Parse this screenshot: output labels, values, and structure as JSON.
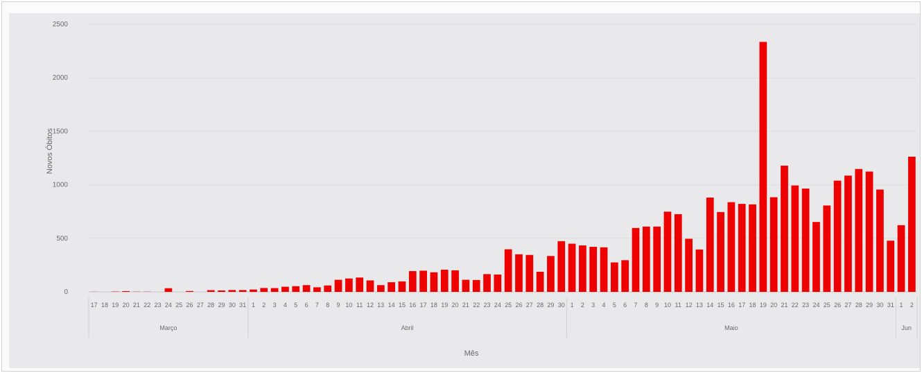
{
  "chart_data": {
    "type": "bar",
    "title": "",
    "xlabel": "Mês",
    "ylabel": "Novos Óbitos",
    "ylim": [
      0,
      2500
    ],
    "yticks": [
      0,
      500,
      1000,
      1500,
      2000,
      2500
    ],
    "grid": true,
    "bar_color": "#ee0000",
    "months": [
      {
        "label": "Março",
        "start": 0,
        "count": 15
      },
      {
        "label": "Abril",
        "start": 15,
        "count": 30
      },
      {
        "label": "Maio",
        "start": 45,
        "count": 31
      },
      {
        "label": "Jun",
        "start": 76,
        "count": 2
      }
    ],
    "categories": [
      "17",
      "18",
      "19",
      "20",
      "21",
      "22",
      "23",
      "24",
      "25",
      "26",
      "27",
      "28",
      "29",
      "30",
      "31",
      "1",
      "2",
      "3",
      "4",
      "5",
      "6",
      "7",
      "8",
      "9",
      "10",
      "11",
      "12",
      "13",
      "14",
      "15",
      "16",
      "17",
      "18",
      "19",
      "20",
      "21",
      "22",
      "23",
      "24",
      "25",
      "26",
      "27",
      "28",
      "29",
      "30",
      "1",
      "2",
      "3",
      "4",
      "5",
      "6",
      "7",
      "8",
      "9",
      "10",
      "11",
      "12",
      "13",
      "14",
      "15",
      "16",
      "17",
      "18",
      "19",
      "20",
      "21",
      "22",
      "23",
      "24",
      "25",
      "26",
      "27",
      "28",
      "29",
      "30",
      "31",
      "1",
      "2"
    ],
    "values": [
      1,
      0,
      3,
      7,
      2,
      2,
      0,
      34,
      0,
      8,
      0,
      16,
      13,
      17,
      17,
      22,
      36,
      35,
      48,
      53,
      63,
      43,
      60,
      113,
      125,
      134,
      107,
      63,
      90,
      98,
      194,
      198,
      183,
      207,
      201,
      113,
      111,
      166,
      162,
      398,
      351,
      345,
      188,
      335,
      474,
      450,
      434,
      421,
      416,
      275,
      296,
      597,
      610,
      610,
      749,
      726,
      496,
      396,
      881,
      746,
      838,
      822,
      817,
      2335,
      884,
      1179,
      994,
      965,
      653,
      807,
      1039,
      1086,
      1148,
      1124,
      956,
      478,
      623,
      1263
    ]
  }
}
